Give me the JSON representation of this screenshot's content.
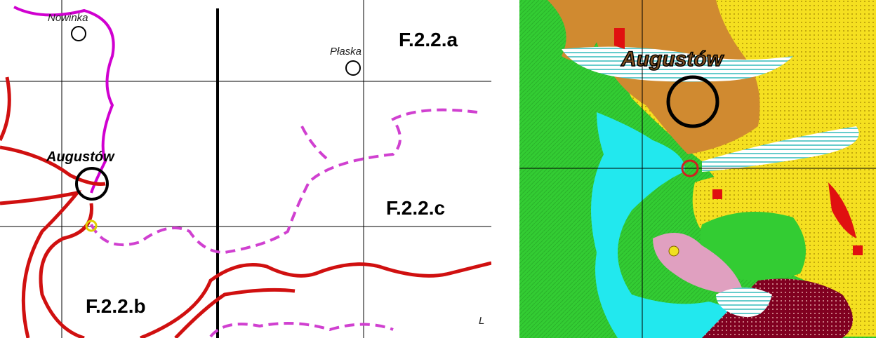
{
  "left_map": {
    "places": [
      "Nowinka",
      "Płaska",
      "Augustów",
      "L"
    ],
    "sheets": [
      "F.2.2.a",
      "F.2.2.c",
      "F.2.2.b"
    ]
  },
  "right_map": {
    "places": [
      "Augustów"
    ]
  }
}
